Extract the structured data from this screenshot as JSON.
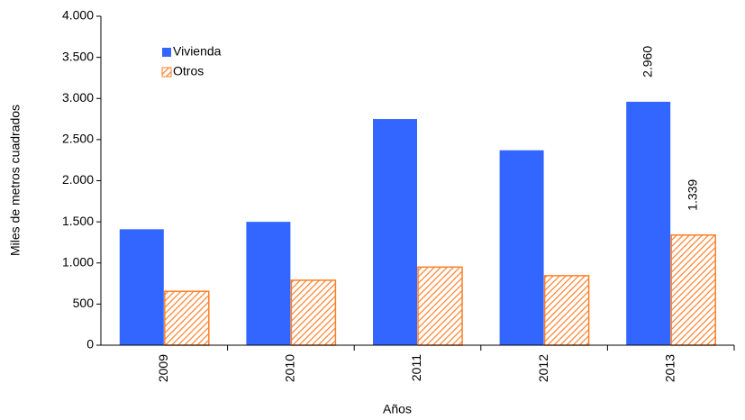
{
  "chart_data": {
    "type": "bar",
    "x_label": "Años",
    "y_label": "Miles de metros cuadrados",
    "categories": [
      "2009",
      "2010",
      "2011",
      "2012",
      "2013"
    ],
    "series": [
      {
        "name": "Vivienda",
        "color": "#3366ff",
        "values": [
          1410,
          1500,
          2750,
          2370,
          2960
        ],
        "value_labels": [
          null,
          null,
          null,
          null,
          "2.960"
        ]
      },
      {
        "name": "Otros",
        "color": "#ff7f27",
        "values": [
          655,
          790,
          950,
          845,
          1339
        ],
        "value_labels": [
          null,
          null,
          null,
          null,
          "1.339"
        ]
      }
    ],
    "ylim": [
      0,
      4000
    ],
    "yticks": [
      0,
      500,
      {
        "value": 1000,
        "label": "1.000"
      },
      {
        "value": 1500,
        "label": "1.500"
      },
      {
        "value": 2000,
        "label": "2.000"
      },
      {
        "value": 2500,
        "label": "2.500"
      },
      {
        "value": 3000,
        "label": "3.000"
      },
      {
        "value": 3500,
        "label": "3.500"
      },
      {
        "value": 4000,
        "label": "4.000"
      }
    ],
    "legend": "upper left"
  }
}
